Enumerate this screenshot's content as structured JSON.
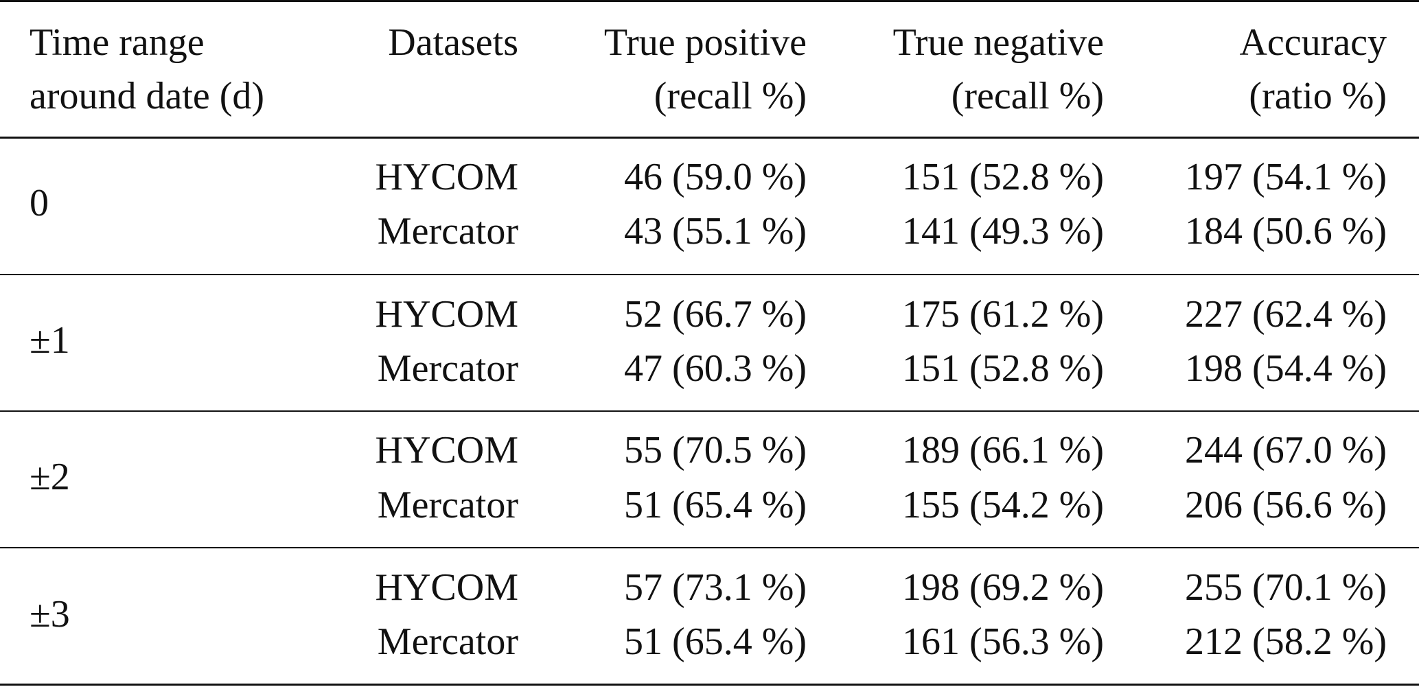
{
  "table": {
    "header": {
      "time_range": [
        "Time range",
        "around date (d)"
      ],
      "datasets": "Datasets",
      "true_positive": [
        "True positive",
        "(recall %)"
      ],
      "true_negative": [
        "True negative",
        "(recall %)"
      ],
      "accuracy": [
        "Accuracy",
        "(ratio %)"
      ]
    },
    "groups": [
      {
        "range": "0",
        "rows": [
          {
            "dataset": "HYCOM",
            "tp": "46 (59.0 %)",
            "tn": "151 (52.8 %)",
            "acc": "197 (54.1 %)"
          },
          {
            "dataset": "Mercator",
            "tp": "43 (55.1 %)",
            "tn": "141 (49.3 %)",
            "acc": "184 (50.6 %)"
          }
        ]
      },
      {
        "range": "±1",
        "rows": [
          {
            "dataset": "HYCOM",
            "tp": "52 (66.7 %)",
            "tn": "175 (61.2 %)",
            "acc": "227 (62.4 %)"
          },
          {
            "dataset": "Mercator",
            "tp": "47 (60.3 %)",
            "tn": "151 (52.8 %)",
            "acc": "198 (54.4 %)"
          }
        ]
      },
      {
        "range": "±2",
        "rows": [
          {
            "dataset": "HYCOM",
            "tp": "55 (70.5 %)",
            "tn": "189 (66.1 %)",
            "acc": "244 (67.0 %)"
          },
          {
            "dataset": "Mercator",
            "tp": "51 (65.4 %)",
            "tn": "155 (54.2 %)",
            "acc": "206 (56.6 %)"
          }
        ]
      },
      {
        "range": "±3",
        "rows": [
          {
            "dataset": "HYCOM",
            "tp": "57 (73.1 %)",
            "tn": "198 (69.2 %)",
            "acc": "255 (70.1 %)"
          },
          {
            "dataset": "Mercator",
            "tp": "51 (65.4 %)",
            "tn": "161 (56.3 %)",
            "acc": "212 (58.2 %)"
          }
        ]
      }
    ]
  }
}
